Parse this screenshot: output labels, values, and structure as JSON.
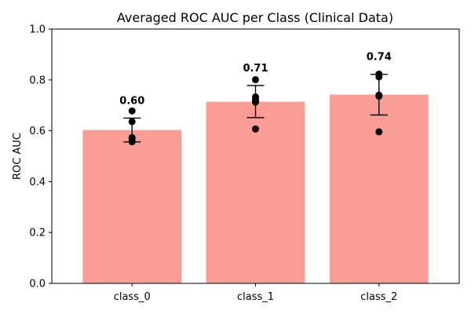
{
  "chart_data": {
    "type": "bar",
    "title": "Averaged ROC AUC per Class (Clinical Data)",
    "xlabel": "",
    "ylabel": "ROC AUC",
    "ylim": [
      0,
      1.0
    ],
    "yticks": [
      "0.0",
      "0.2",
      "0.4",
      "0.6",
      "0.8",
      "1.0"
    ],
    "ytick_values": [
      0.0,
      0.2,
      0.4,
      0.6,
      0.8,
      1.0
    ],
    "categories": [
      "class_0",
      "class_1",
      "class_2"
    ],
    "values": [
      0.603,
      0.714,
      0.742
    ],
    "value_labels": [
      "0.60",
      "0.71",
      "0.74"
    ],
    "error": [
      {
        "low": 0.556,
        "high": 0.65
      },
      {
        "low": 0.652,
        "high": 0.778
      },
      {
        "low": 0.662,
        "high": 0.822
      }
    ],
    "points": [
      [
        0.678,
        0.636,
        0.573,
        0.562,
        0.557
      ],
      [
        0.801,
        0.733,
        0.722,
        0.713,
        0.607
      ],
      [
        0.823,
        0.812,
        0.74,
        0.736,
        0.596
      ]
    ],
    "grid": false,
    "colors": {
      "bar": "#fa9d94",
      "point": "#000000",
      "errorbar": "#000000",
      "axis": "#000000"
    }
  }
}
